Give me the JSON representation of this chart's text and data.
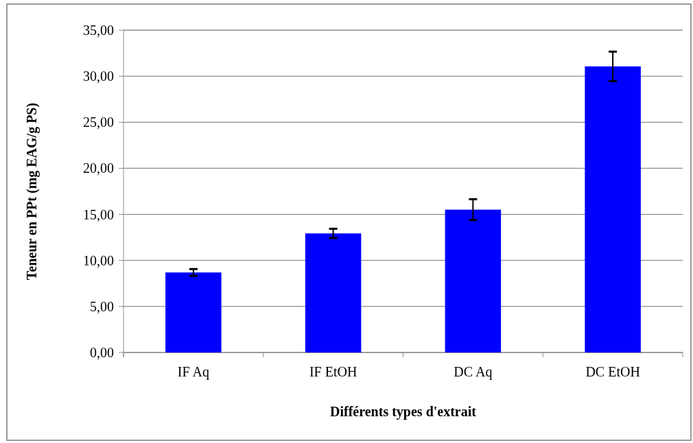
{
  "chart_data": {
    "type": "bar",
    "xlabel": "Différents types d'extrait",
    "ylabel": "Teneur en PPt (mg EAG/g PS)",
    "categories": [
      "IF Aq",
      "IF EtOH",
      "DC Aq",
      "DC EtOH"
    ],
    "series": [
      {
        "color": "#0000ff",
        "values": [
          8.69,
          12.93,
          15.51,
          31.07
        ],
        "errors": [
          0.37,
          0.5,
          1.13,
          1.6
        ]
      }
    ],
    "ylim": [
      0,
      35
    ],
    "yticks": [
      {
        "value": 0,
        "label": "0,00"
      },
      {
        "value": 5,
        "label": "5,00"
      },
      {
        "value": 10,
        "label": "10,00"
      },
      {
        "value": 15,
        "label": "15,00"
      },
      {
        "value": 20,
        "label": "20,00"
      },
      {
        "value": 25,
        "label": "25,00"
      },
      {
        "value": 30,
        "label": "30,00"
      },
      {
        "value": 35,
        "label": "35,00"
      }
    ],
    "grid": "y"
  }
}
